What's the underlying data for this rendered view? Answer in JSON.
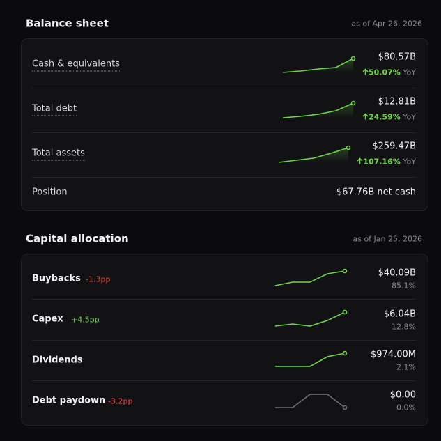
{
  "balance_sheet": {
    "title": "Balance sheet",
    "as_of": "as of Apr 26, 2026",
    "rows": [
      {
        "label": "Cash & equivalents",
        "value": "$80.57B",
        "change": "50.07%",
        "change_suffix": "YoY"
      },
      {
        "label": "Total debt",
        "value": "$12.81B",
        "change": "24.59%",
        "change_suffix": "YoY"
      },
      {
        "label": "Total assets",
        "value": "$259.47B",
        "change": "107.16%",
        "change_suffix": "YoY"
      }
    ],
    "position": {
      "label": "Position",
      "value": "$67.76B net cash"
    }
  },
  "capital_allocation": {
    "title": "Capital allocation",
    "as_of": "as of Jan 25, 2026",
    "rows": [
      {
        "label": "Buybacks",
        "delta": "-1.3pp",
        "value": "$40.09B",
        "share": "85.1%"
      },
      {
        "label": "Capex",
        "delta": "+4.5pp",
        "value": "$6.04B",
        "share": "12.8%"
      },
      {
        "label": "Dividends",
        "value": "$974.00M",
        "share": "2.1%"
      },
      {
        "label": "Debt paydown",
        "delta": "-3.2pp",
        "value": "$0.00",
        "share": "0.0%"
      }
    ]
  }
}
